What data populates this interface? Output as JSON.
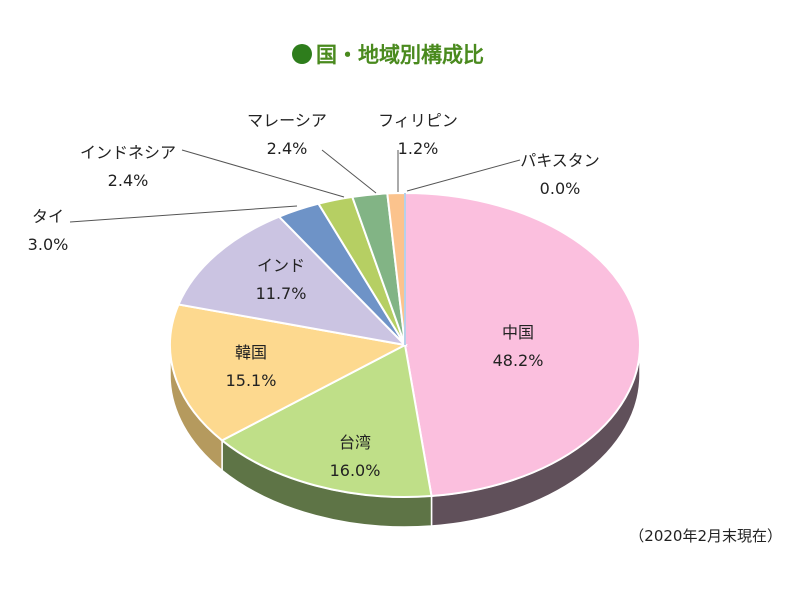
{
  "chart_data": {
    "type": "pie",
    "title": "国・地域別構成比",
    "note": "（2020年2月末現在）",
    "unit": "%",
    "slices": [
      {
        "name": "中国",
        "value": 48.2,
        "color": "#fbbfde",
        "side": "#60505a"
      },
      {
        "name": "台湾",
        "value": 16.0,
        "color": "#bfdf88",
        "side": "#5e7446"
      },
      {
        "name": "韓国",
        "value": 15.1,
        "color": "#fdd98f",
        "side": "#b59a5e"
      },
      {
        "name": "インド",
        "value": 11.7,
        "color": "#cbc4e2",
        "side": "#8a84a4"
      },
      {
        "name": "タイ",
        "value": 3.0,
        "color": "#6e93c7",
        "side": "#4b6a94"
      },
      {
        "name": "インドネシア",
        "value": 2.4,
        "color": "#b6cf63",
        "side": "#7d9040"
      },
      {
        "name": "マレーシア",
        "value": 2.4,
        "color": "#82b485",
        "side": "#5b845e"
      },
      {
        "name": "フィリピン",
        "value": 1.2,
        "color": "#fbc38d",
        "side": "#b8875a"
      },
      {
        "name": "パキスタン",
        "value": 0.0,
        "color": "#9ec0e4",
        "side": "#6f8eb0"
      }
    ],
    "legend": "none"
  }
}
